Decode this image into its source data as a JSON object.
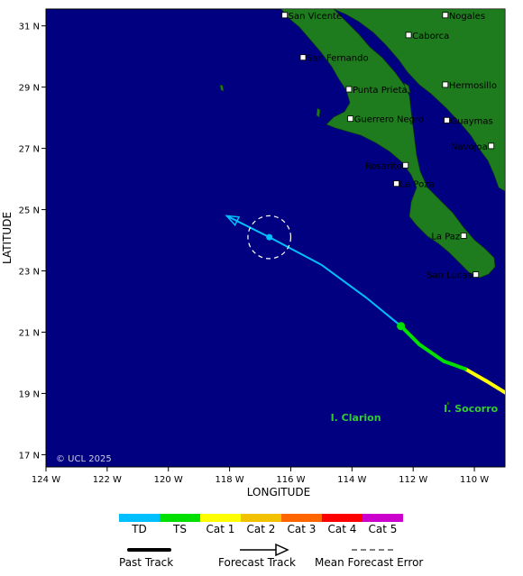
{
  "map": {
    "x_axis_title": "LONGITUDE",
    "y_axis_title": "LATITUDE",
    "lon_ticks": [
      "124 W",
      "122 W",
      "120 W",
      "118 W",
      "116 W",
      "114 W",
      "112 W",
      "110 W"
    ],
    "lat_ticks": [
      "31 N",
      "29 N",
      "27 N",
      "25 N",
      "23 N",
      "21 N",
      "19 N",
      "17 N"
    ],
    "copyright": "© UCL 2025",
    "colors": {
      "ocean": "#000080",
      "land": "#1e7b1e",
      "island_label": "#33cc33"
    }
  },
  "cities": [
    {
      "name": "San Vicente",
      "lon": -116.2,
      "lat": 31.35
    },
    {
      "name": "Nogales",
      "lon": -110.95,
      "lat": 31.35
    },
    {
      "name": "Caborca",
      "lon": -112.15,
      "lat": 30.7
    },
    {
      "name": "San Fernando",
      "lon": -115.6,
      "lat": 29.97
    },
    {
      "name": "Hermosillo",
      "lon": -110.95,
      "lat": 29.08
    },
    {
      "name": "Punta Prieta",
      "lon": -114.1,
      "lat": 28.93
    },
    {
      "name": "Guerrero Negro",
      "lon": -114.05,
      "lat": 27.97
    },
    {
      "name": "Guaymas",
      "lon": -110.9,
      "lat": 27.92
    },
    {
      "name": "Navojoa",
      "lon": -109.45,
      "lat": 27.08
    },
    {
      "name": "Rosarito",
      "lon": -112.25,
      "lat": 26.45
    },
    {
      "name": "La Poza",
      "lon": -112.55,
      "lat": 25.85
    },
    {
      "name": "La Paz",
      "lon": -110.35,
      "lat": 24.15
    },
    {
      "name": "San Lucas",
      "lon": -109.95,
      "lat": 22.88
    }
  ],
  "islands": [
    {
      "name": "I. Clarion",
      "lon": -114.7,
      "lat": 18.1
    },
    {
      "name": "I. Socorro",
      "lon": -111.0,
      "lat": 18.4
    }
  ],
  "track": {
    "past": [
      {
        "lon": -108.3,
        "lat": 18.6,
        "cat": "Cat 1"
      },
      {
        "lon": -109.6,
        "lat": 19.4,
        "cat": "Cat 1"
      },
      {
        "lon": -110.3,
        "lat": 19.8,
        "cat": "Cat 1"
      },
      {
        "lon": -111.0,
        "lat": 20.05,
        "cat": "TS"
      },
      {
        "lon": -111.8,
        "lat": 20.6,
        "cat": "TS"
      },
      {
        "lon": -112.4,
        "lat": 21.2,
        "cat": "TS"
      }
    ],
    "forecast": [
      {
        "lon": -112.4,
        "lat": 21.2,
        "cat": "TS"
      },
      {
        "lon": -113.5,
        "lat": 22.1,
        "cat": "TD"
      },
      {
        "lon": -115.0,
        "lat": 23.2,
        "cat": "TD"
      },
      {
        "lon": -116.7,
        "lat": 24.1,
        "cat": "TD"
      },
      {
        "lon": -118.1,
        "lat": 24.8,
        "cat": "TD"
      }
    ],
    "current_position": {
      "lon": -112.4,
      "lat": 21.2
    },
    "forecast_point": {
      "lon": -116.7,
      "lat": 24.1
    },
    "forecast_error_radius_deg": 0.7
  },
  "legend": {
    "categories": [
      {
        "label": "TD",
        "color": "#00bfff"
      },
      {
        "label": "TS",
        "color": "#00e000"
      },
      {
        "label": "Cat 1",
        "color": "#ffff00"
      },
      {
        "label": "Cat 2",
        "color": "#f2c200"
      },
      {
        "label": "Cat 3",
        "color": "#ff6600"
      },
      {
        "label": "Cat 4",
        "color": "#ff0000"
      },
      {
        "label": "Cat 5",
        "color": "#cc00cc"
      }
    ],
    "past_track_label": "Past Track",
    "forecast_track_label": "Forecast Track",
    "error_label": "Mean Forecast Error"
  }
}
